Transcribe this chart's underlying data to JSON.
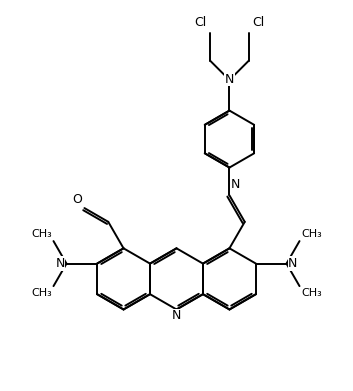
{
  "bg_color": "#ffffff",
  "line_color": "#000000",
  "text_color": "#000000",
  "line_width": 1.4,
  "font_size": 8.5,
  "figsize": [
    3.53,
    3.91
  ],
  "dpi": 100,
  "xlim": [
    -1.5,
    8.5
  ],
  "ylim": [
    -0.5,
    10.5
  ]
}
